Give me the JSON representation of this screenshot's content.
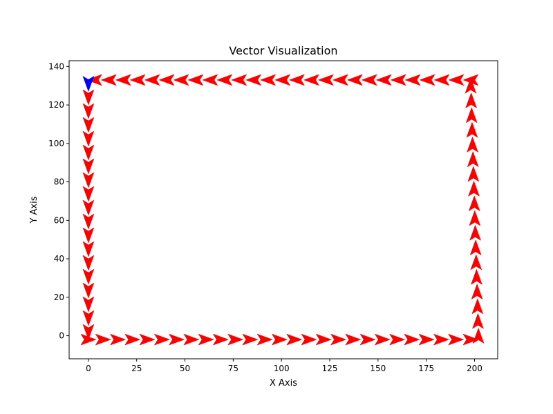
{
  "chart_data": {
    "type": "quiver",
    "title": "Vector Visualization",
    "xlabel": "X Axis",
    "ylabel": "Y Axis",
    "xlim": [
      -10,
      212
    ],
    "ylim": [
      -12,
      143
    ],
    "xticks": [
      0,
      25,
      50,
      75,
      100,
      125,
      150,
      175,
      200
    ],
    "yticks": [
      0,
      20,
      40,
      60,
      80,
      100,
      120,
      140
    ],
    "grid": false,
    "colors": {
      "main": "#ff0000",
      "start": "#0000ff"
    },
    "segments": [
      {
        "name": "bottom",
        "from": [
          0,
          -2
        ],
        "to": [
          198,
          -2
        ],
        "count": 27,
        "direction": "right"
      },
      {
        "name": "right",
        "from": [
          202,
          0
        ],
        "to": [
          198,
          130
        ],
        "count": 18,
        "direction": "up"
      },
      {
        "name": "top",
        "from": [
          198,
          133
        ],
        "to": [
          3,
          133
        ],
        "count": 27,
        "direction": "left"
      },
      {
        "name": "left",
        "from": [
          0,
          124
        ],
        "to": [
          0,
          2
        ],
        "count": 18,
        "direction": "down"
      }
    ],
    "start_vector": {
      "x": 0,
      "y": 131,
      "direction": "down"
    }
  }
}
